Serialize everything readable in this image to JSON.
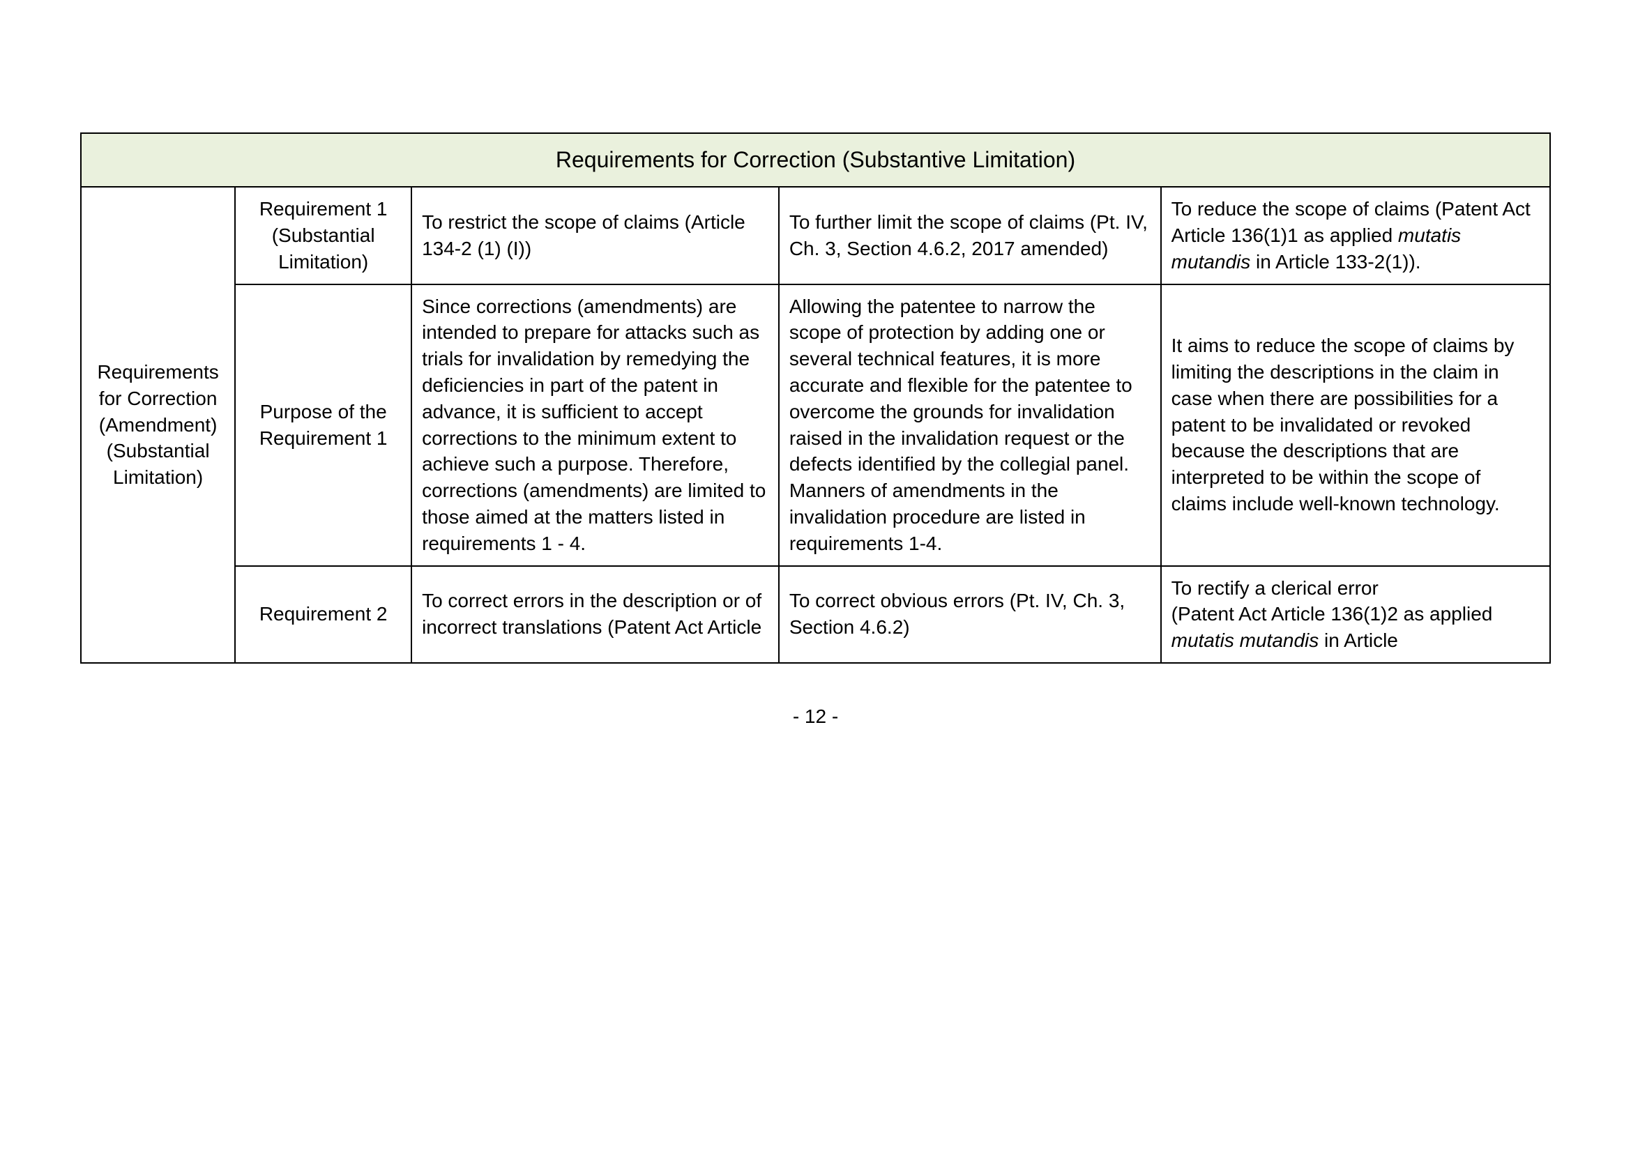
{
  "title": "Requirements for Correction (Substantive Limitation)",
  "rowspanLabel": "Requirements for Correction (Amendment) (Substantial Limitation)",
  "rows": [
    {
      "c2": "Requirement 1 (Substantial Limitation)",
      "c3": "To restrict the scope of claims (Article 134-2 (1) (I))",
      "c4": "To further limit the scope of claims (Pt. IV, Ch. 3, Section 4.6.2, 2017 amended)",
      "c5_pre": "To reduce the scope of claims (Patent Act Article 136(1)1 as applied ",
      "c5_italic": "mutatis mutandis",
      "c5_post": " in Article 133-2(1))."
    },
    {
      "c2": "Purpose of the Requirement 1",
      "c3": "Since corrections (amendments) are intended to prepare for attacks such as trials for invalidation by remedying the deficiencies in part of the patent in advance, it is sufficient to accept corrections to the minimum extent to achieve such a purpose. Therefore, corrections (amendments) are limited to those aimed at the matters listed in requirements 1 - 4.",
      "c4": "Allowing the patentee to narrow the scope of protection by adding one or several technical features, it is more accurate and flexible for the patentee to overcome the grounds for invalidation raised in the invalidation request or the defects identified by the collegial panel.\nManners of amendments in the invalidation procedure are listed in requirements 1-4.",
      "c5": "It aims to reduce the scope of claims by limiting the descriptions in the claim in case when there are possibilities for a patent to be invalidated or revoked because the descriptions that are interpreted to be within the scope of claims include well-known technology."
    },
    {
      "c2": "Requirement 2",
      "c3": "To correct errors in the description or of incorrect translations (Patent Act Article",
      "c4": "To correct obvious errors (Pt. IV, Ch. 3, Section 4.6.2)",
      "c5_pre": "To rectify a clerical error\n(Patent Act Article 136(1)2 as applied ",
      "c5_italic": "mutatis mutandis",
      "c5_post": " in Article"
    }
  ],
  "pageNumber": "- 12 -",
  "colors": {
    "headerBg": "#eaf1dd",
    "border": "#000000",
    "background": "#ffffff"
  }
}
